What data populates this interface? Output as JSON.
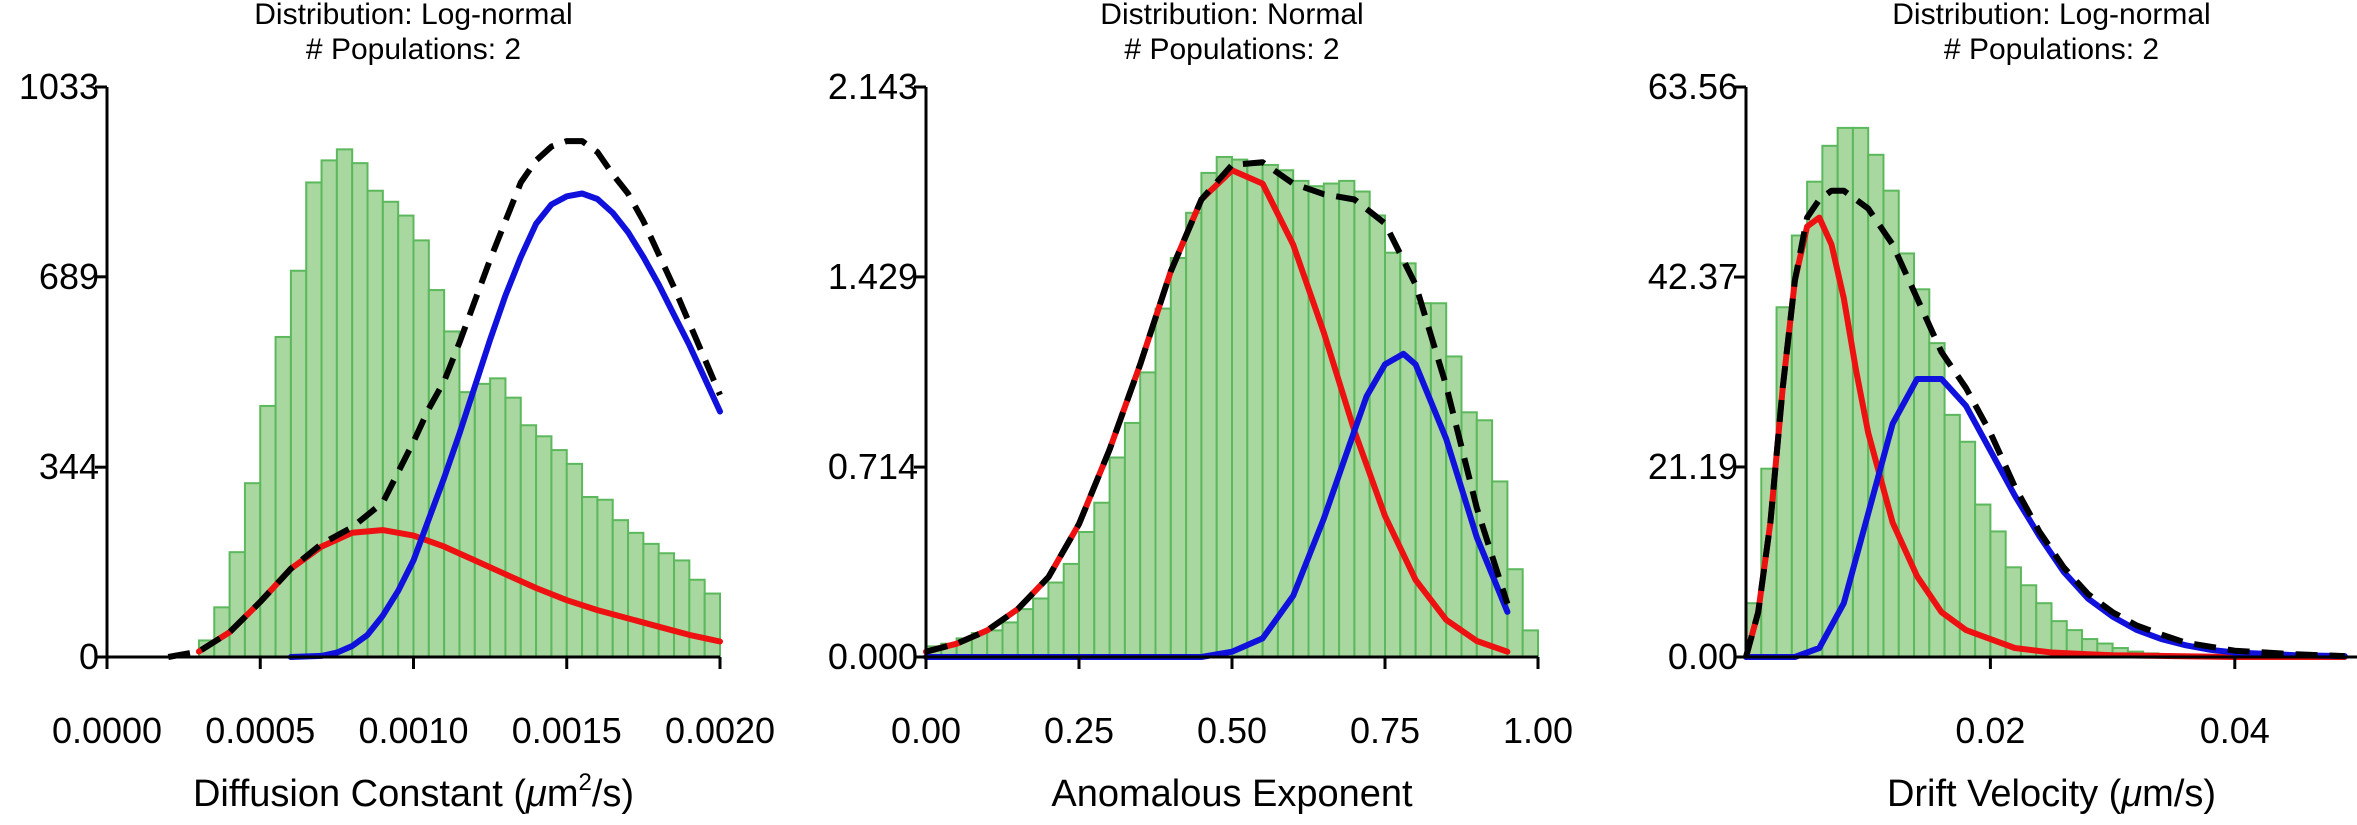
{
  "chart_data": [
    {
      "type": "bar",
      "title_lines": [
        "Distribution: Log-normal",
        "# Populations: 2"
      ],
      "xlabel_prefix": "Diffusion Constant (",
      "xlabel_mu": "μ",
      "xlabel_unit": "m",
      "xlabel_sup": "2",
      "xlabel_suffix": "/s)",
      "xlim": [
        0,
        0.002
      ],
      "ylim": [
        0,
        1033
      ],
      "xticks": [
        "0.0000",
        "0.0005",
        "0.0010",
        "0.0015",
        "0.0020"
      ],
      "yticks": [
        "0",
        "344",
        "689",
        "1033"
      ],
      "grid": false,
      "colors": {
        "bars": "#a8d8a0",
        "bar_edge": "#5cb85c",
        "fit1": "#ee1111",
        "fit2": "#1111dd",
        "total": "#000000"
      },
      "bins": {
        "start": 0.0,
        "width": 5e-05,
        "values": [
          0,
          0,
          0,
          0,
          0,
          0,
          30,
          90,
          190,
          315,
          455,
          580,
          700,
          860,
          900,
          920,
          895,
          845,
          825,
          800,
          755,
          665,
          590,
          480,
          495,
          505,
          470,
          420,
          400,
          375,
          350,
          290,
          285,
          248,
          225,
          205,
          188,
          175,
          140,
          115
        ]
      },
      "series": [
        {
          "style": "solid",
          "x": [
            0.0003,
            0.0004,
            0.0005,
            0.0006,
            0.0007,
            0.0008,
            0.0009,
            0.001,
            0.0011,
            0.0012,
            0.0013,
            0.0014,
            0.0015,
            0.0016,
            0.0017,
            0.0018,
            0.0019,
            0.002
          ],
          "y": [
            10,
            45,
            100,
            160,
            200,
            225,
            230,
            220,
            200,
            175,
            150,
            125,
            103,
            85,
            70,
            55,
            40,
            28
          ]
        },
        {
          "style": "solid",
          "x": [
            0.0006,
            0.0007,
            0.00075,
            0.0008,
            0.00085,
            0.0009,
            0.00095,
            0.001,
            0.00105,
            0.0011,
            0.00115,
            0.0012,
            0.00125,
            0.0013,
            0.00135,
            0.0014,
            0.00145,
            0.0015,
            0.00155,
            0.0016,
            0.00165,
            0.0017,
            0.00175,
            0.0018,
            0.00185,
            0.0019,
            0.00195,
            0.002
          ],
          "y": [
            0,
            2,
            8,
            20,
            40,
            75,
            120,
            175,
            250,
            325,
            405,
            490,
            575,
            655,
            725,
            785,
            820,
            835,
            840,
            830,
            805,
            770,
            725,
            675,
            620,
            565,
            505,
            445
          ]
        },
        {
          "style": "dashed",
          "x": [
            0.0002,
            0.0003,
            0.0004,
            0.0005,
            0.0006,
            0.0007,
            0.0008,
            0.0009,
            0.001,
            0.00105,
            0.0011,
            0.00115,
            0.0012,
            0.00125,
            0.0013,
            0.00135,
            0.0014,
            0.00145,
            0.0015,
            0.00155,
            0.0016,
            0.00165,
            0.0017,
            0.00175,
            0.0018,
            0.00185,
            0.0019,
            0.00195,
            0.002
          ],
          "y": [
            0,
            10,
            45,
            100,
            160,
            205,
            235,
            280,
            390,
            450,
            500,
            570,
            645,
            720,
            790,
            860,
            900,
            925,
            935,
            935,
            915,
            875,
            840,
            790,
            730,
            670,
            605,
            540,
            475
          ]
        }
      ]
    },
    {
      "type": "bar",
      "title_lines": [
        "Distribution: Normal",
        "# Populations: 2"
      ],
      "xlabel": "Anomalous Exponent",
      "xlim": [
        0,
        1
      ],
      "ylim": [
        0,
        2.143
      ],
      "xticks": [
        "0.00",
        "0.25",
        "0.50",
        "0.75",
        "1.00"
      ],
      "yticks": [
        "0.000",
        "0.714",
        "1.429",
        "2.143"
      ],
      "grid": false,
      "colors": {
        "bars": "#a8d8a0",
        "bar_edge": "#5cb85c",
        "fit1": "#ee1111",
        "fit2": "#1111dd",
        "total": "#000000"
      },
      "bins": {
        "start": 0.0,
        "width": 0.025,
        "values": [
          0.04,
          0.05,
          0.07,
          0.09,
          0.1,
          0.13,
          0.18,
          0.22,
          0.28,
          0.35,
          0.47,
          0.58,
          0.75,
          0.88,
          1.07,
          1.31,
          1.5,
          1.67,
          1.82,
          1.88,
          1.87,
          1.85,
          1.85,
          1.83,
          1.79,
          1.77,
          1.78,
          1.79,
          1.75,
          1.66,
          1.52,
          1.48,
          1.33,
          1.33,
          1.13,
          0.92,
          0.89,
          0.66,
          0.33,
          0.1
        ]
      },
      "series": [
        {
          "style": "solid",
          "x": [
            0,
            0.05,
            0.1,
            0.15,
            0.2,
            0.25,
            0.3,
            0.35,
            0.4,
            0.45,
            0.5,
            0.55,
            0.6,
            0.65,
            0.7,
            0.75,
            0.8,
            0.85,
            0.9,
            0.95
          ],
          "y": [
            0.02,
            0.05,
            0.1,
            0.18,
            0.3,
            0.5,
            0.78,
            1.1,
            1.45,
            1.72,
            1.83,
            1.78,
            1.55,
            1.22,
            0.85,
            0.53,
            0.29,
            0.14,
            0.06,
            0.02
          ]
        },
        {
          "style": "solid",
          "x": [
            0,
            0.45,
            0.5,
            0.55,
            0.6,
            0.65,
            0.7,
            0.72,
            0.75,
            0.78,
            0.8,
            0.85,
            0.9,
            0.95
          ],
          "y": [
            0,
            0,
            0.02,
            0.07,
            0.23,
            0.52,
            0.85,
            0.98,
            1.1,
            1.14,
            1.1,
            0.82,
            0.45,
            0.17
          ]
        },
        {
          "style": "dashed",
          "x": [
            0,
            0.05,
            0.1,
            0.15,
            0.2,
            0.25,
            0.3,
            0.35,
            0.4,
            0.45,
            0.5,
            0.55,
            0.6,
            0.65,
            0.7,
            0.75,
            0.8,
            0.85,
            0.9,
            0.95
          ],
          "y": [
            0.02,
            0.05,
            0.1,
            0.18,
            0.3,
            0.5,
            0.78,
            1.1,
            1.45,
            1.72,
            1.85,
            1.86,
            1.78,
            1.74,
            1.72,
            1.63,
            1.4,
            1.02,
            0.56,
            0.2
          ]
        }
      ]
    },
    {
      "type": "bar",
      "title_lines": [
        "Distribution: Log-normal",
        "# Populations: 2"
      ],
      "xlabel_prefix": "Drift Velocity (",
      "xlabel_mu": "μ",
      "xlabel_unit": "m",
      "xlabel_suffix": "/s)",
      "xlim": [
        0,
        0.05
      ],
      "ylim": [
        0,
        63.56
      ],
      "xticks": [
        "0.02",
        "0.04"
      ],
      "xtick_values": [
        0.02,
        0.04
      ],
      "yticks": [
        "0.00",
        "21.19",
        "42.37",
        "63.56"
      ],
      "grid": false,
      "colors": {
        "bars": "#a8d8a0",
        "bar_edge": "#5cb85c",
        "fit1": "#ee1111",
        "fit2": "#1111dd",
        "total": "#000000"
      },
      "bins": {
        "start": 0.0,
        "width": 0.00125,
        "values": [
          6,
          21,
          39,
          47,
          53,
          57,
          59,
          59,
          56,
          52,
          45,
          41,
          35,
          27,
          24,
          17,
          14,
          10,
          8,
          6,
          4,
          3,
          2,
          1.5,
          1,
          0.6,
          0.4,
          0.3,
          0.2,
          0.1,
          0.05,
          0
        ]
      },
      "series": [
        {
          "style": "solid",
          "x": [
            0,
            0.001,
            0.002,
            0.003,
            0.004,
            0.005,
            0.006,
            0.007,
            0.008,
            0.009,
            0.01,
            0.012,
            0.014,
            0.016,
            0.018,
            0.02,
            0.022,
            0.025,
            0.028,
            0.03,
            0.035,
            0.04,
            0.045,
            0.049
          ],
          "y": [
            0,
            5,
            15,
            30,
            42,
            48,
            49,
            46,
            40,
            32,
            25,
            15,
            9,
            5,
            3,
            2,
            1,
            0.5,
            0.3,
            0.2,
            0.1,
            0,
            0,
            0
          ]
        },
        {
          "style": "solid",
          "x": [
            0,
            0.004,
            0.006,
            0.008,
            0.01,
            0.012,
            0.014,
            0.016,
            0.018,
            0.02,
            0.022,
            0.024,
            0.026,
            0.028,
            0.03,
            0.032,
            0.034,
            0.036,
            0.038,
            0.04,
            0.045,
            0.049
          ],
          "y": [
            0,
            0,
            1,
            6,
            16,
            26,
            31,
            31,
            28,
            23,
            18,
            13.5,
            9.5,
            6.5,
            4.5,
            3,
            2,
            1.3,
            0.8,
            0.5,
            0.2,
            0.1
          ]
        },
        {
          "style": "dashed",
          "x": [
            0,
            0.001,
            0.002,
            0.003,
            0.004,
            0.005,
            0.006,
            0.007,
            0.008,
            0.009,
            0.01,
            0.012,
            0.014,
            0.016,
            0.018,
            0.02,
            0.022,
            0.024,
            0.026,
            0.028,
            0.03,
            0.032,
            0.034,
            0.036,
            0.04,
            0.045,
            0.049
          ],
          "y": [
            0,
            5,
            15,
            30,
            42,
            49,
            51,
            52,
            52,
            51,
            50,
            46,
            40,
            34,
            30,
            25,
            19,
            14,
            10,
            7,
            5,
            3.5,
            2.5,
            1.6,
            0.7,
            0.3,
            0.1
          ]
        }
      ]
    }
  ]
}
